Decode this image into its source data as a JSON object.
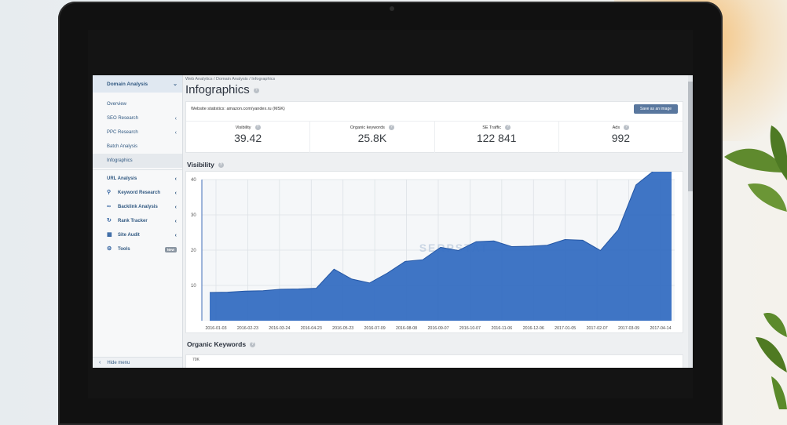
{
  "sidebar": {
    "header": "Domain Analysis",
    "items": [
      {
        "label": "Overview"
      },
      {
        "label": "SEO Research"
      },
      {
        "label": "PPC Research"
      },
      {
        "label": "Batch Analysis"
      },
      {
        "label": "Infographics"
      }
    ],
    "tools": [
      {
        "label": "URL Analysis",
        "icon": "link-icon"
      },
      {
        "label": "Keyword Research",
        "icon": "key-icon"
      },
      {
        "label": "Backlink Analysis",
        "icon": "chain-icon"
      },
      {
        "label": "Rank Tracker",
        "icon": "refresh-icon"
      },
      {
        "label": "Site Audit",
        "icon": "sitemap-icon"
      },
      {
        "label": "Tools",
        "icon": "gear-icon",
        "badge": "New"
      }
    ],
    "footer": "Hide menu"
  },
  "main": {
    "breadcrumb": "Web Analytics / Domain Analysis / Infographics",
    "title": "Infographics",
    "website_line": "Website statistics: amazon.com/yandex.ru (MSK)",
    "save_button": "Save as an image",
    "stats": [
      {
        "label": "Visibility",
        "value": "39.42"
      },
      {
        "label": "Organic keywords",
        "value": "25.8K"
      },
      {
        "label": "SE Traffic",
        "value": "122 841"
      },
      {
        "label": "Ads",
        "value": "992"
      }
    ],
    "visibility_title": "Visibility",
    "organic_title": "Organic Keywords",
    "organic_first_tick": "70K",
    "watermark": "SERPSTAT"
  },
  "chart_data": {
    "type": "area",
    "title": "Visibility",
    "ylim": [
      0,
      40
    ],
    "yticks": [
      10,
      20,
      30,
      40
    ],
    "xticks": [
      "2016-01-03",
      "2016-02-23",
      "2016-03-24",
      "2016-04-23",
      "2016-05-23",
      "2016-07-09",
      "2016-08-08",
      "2016-09-07",
      "2016-10-07",
      "2016-11-06",
      "2016-12-06",
      "2017-01-05",
      "2017-02-07",
      "2017-03-09",
      "2017-04-14"
    ],
    "series": [
      {
        "values": [
          8,
          8.1,
          8.4,
          8.5,
          8.9,
          9.0,
          9.2,
          14.6,
          11.8,
          10.7,
          13.5,
          16.8,
          17.3,
          20.8,
          19.9,
          22.4,
          22.6,
          21.0,
          21.1,
          21.4,
          23.0,
          22.8,
          19.9,
          25.8,
          38.5,
          42.5,
          44.0
        ]
      }
    ],
    "color": "#2f6fcc",
    "grid": true
  }
}
